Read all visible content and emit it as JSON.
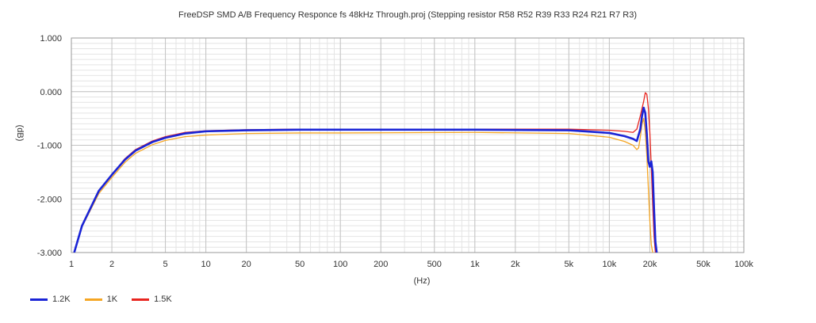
{
  "chart_data": {
    "type": "line",
    "title": "FreeDSP SMD A/B Frequency Responce fs 48kHz Through.proj (Stepping resistor R58 R52 R39 R33 R24 R21 R7 R3)",
    "xlabel": "(Hz)",
    "ylabel": "(dB)",
    "xscale": "log",
    "xlim": [
      1,
      100000
    ],
    "ylim": [
      -3,
      1
    ],
    "grid": true,
    "legend_position": "bottom-left",
    "x_ticks": [
      {
        "value": 1,
        "label": "1"
      },
      {
        "value": 2,
        "label": "2"
      },
      {
        "value": 5,
        "label": "5"
      },
      {
        "value": 10,
        "label": "10"
      },
      {
        "value": 20,
        "label": "20"
      },
      {
        "value": 50,
        "label": "50"
      },
      {
        "value": 100,
        "label": "100"
      },
      {
        "value": 200,
        "label": "200"
      },
      {
        "value": 500,
        "label": "500"
      },
      {
        "value": 1000,
        "label": "1k"
      },
      {
        "value": 2000,
        "label": "2k"
      },
      {
        "value": 5000,
        "label": "5k"
      },
      {
        "value": 10000,
        "label": "10k"
      },
      {
        "value": 20000,
        "label": "20k"
      },
      {
        "value": 50000,
        "label": "50k"
      },
      {
        "value": 100000,
        "label": "100k"
      }
    ],
    "y_ticks": [
      {
        "value": 1,
        "label": "1.000"
      },
      {
        "value": 0,
        "label": "0.000"
      },
      {
        "value": -1,
        "label": "-1.000"
      },
      {
        "value": -2,
        "label": "-2.000"
      },
      {
        "value": -3,
        "label": "-3.000"
      }
    ],
    "series": [
      {
        "name": "1.5K",
        "color": "#e8251f",
        "x": [
          1.05,
          1.2,
          1.6,
          2,
          2.5,
          3,
          4,
          5,
          7,
          10,
          20,
          50,
          100,
          1000,
          5000,
          10000,
          13000,
          15000,
          16000,
          17000,
          18000,
          18500,
          19000,
          19500,
          20000,
          20500,
          21000,
          21500,
          22000
        ],
        "y": [
          -3.0,
          -2.5,
          -1.86,
          -1.55,
          -1.25,
          -1.08,
          -0.92,
          -0.84,
          -0.76,
          -0.73,
          -0.71,
          -0.7,
          -0.7,
          -0.7,
          -0.7,
          -0.72,
          -0.74,
          -0.76,
          -0.7,
          -0.45,
          -0.18,
          -0.02,
          -0.05,
          -0.3,
          -0.75,
          -1.4,
          -2.1,
          -2.7,
          -3.0
        ]
      },
      {
        "name": "1K",
        "color": "#f5a623",
        "x": [
          1.05,
          1.2,
          1.6,
          2,
          2.5,
          3,
          4,
          5,
          7,
          10,
          20,
          50,
          100,
          1000,
          5000,
          10000,
          13000,
          15000,
          16000,
          16500,
          17000,
          17500,
          18000,
          18500,
          19000,
          19500,
          20000,
          20500,
          21000
        ],
        "y": [
          -3.0,
          -2.52,
          -1.9,
          -1.6,
          -1.32,
          -1.15,
          -0.99,
          -0.91,
          -0.84,
          -0.81,
          -0.78,
          -0.77,
          -0.77,
          -0.76,
          -0.78,
          -0.85,
          -0.93,
          -1.0,
          -1.08,
          -1.05,
          -0.85,
          -0.6,
          -0.5,
          -0.75,
          -1.2,
          -1.8,
          -2.4,
          -2.85,
          -3.0
        ]
      },
      {
        "name": "1.2K",
        "color": "#1a24d6",
        "x": [
          1.05,
          1.2,
          1.6,
          2,
          2.5,
          3,
          4,
          5,
          7,
          10,
          20,
          50,
          100,
          1000,
          5000,
          10000,
          13000,
          15000,
          16000,
          17000,
          17500,
          18000,
          18500,
          19000,
          19500,
          20000,
          20500,
          21000,
          21500,
          22000,
          22500
        ],
        "y": [
          -3.0,
          -2.5,
          -1.85,
          -1.55,
          -1.27,
          -1.1,
          -0.94,
          -0.86,
          -0.78,
          -0.74,
          -0.72,
          -0.71,
          -0.71,
          -0.71,
          -0.72,
          -0.77,
          -0.83,
          -0.88,
          -0.92,
          -0.7,
          -0.45,
          -0.3,
          -0.4,
          -0.8,
          -1.3,
          -1.4,
          -1.3,
          -1.5,
          -2.2,
          -2.8,
          -3.0
        ]
      }
    ]
  }
}
